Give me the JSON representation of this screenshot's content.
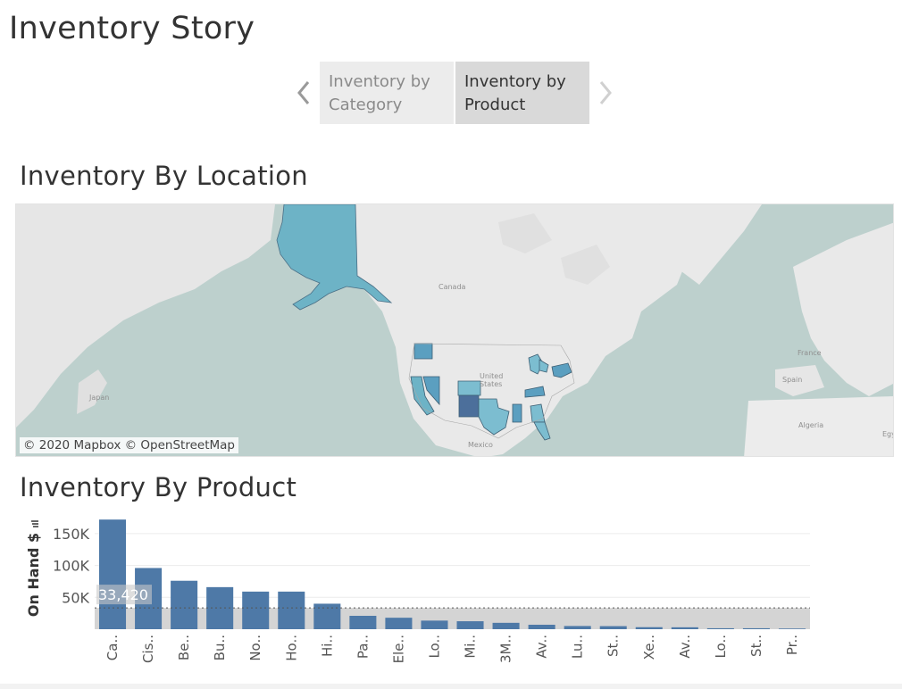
{
  "story": {
    "title": "Inventory Story",
    "points": [
      {
        "label": "Inventory by\nCategory",
        "selected": false
      },
      {
        "label": "Inventory by\nProduct",
        "selected": true
      }
    ],
    "prev_icon": "chevron-left-icon",
    "next_icon": "chevron-right-icon"
  },
  "location": {
    "title": "Inventory By Location",
    "attribution": "© 2020 Mapbox © OpenStreetMap",
    "labels": {
      "canada": "Canada",
      "united_states": "United\nStates",
      "mexico": "Mexico",
      "japan": "Japan",
      "france": "France",
      "spain": "Spain",
      "algeria": "Algeria",
      "egypt": "Egy"
    },
    "colors": {
      "water": "#bdd0cd",
      "land": "#e9e9e9",
      "state_light": "#7cbdd0",
      "state_mid": "#5b9fc0",
      "state_dark": "#4c6f9b"
    }
  },
  "product": {
    "title": "Inventory By Product",
    "reference_label": "33,420",
    "bar_color": "#4e79a7",
    "band_color": "#d4d4d4"
  },
  "chart_data": {
    "type": "bar",
    "categories": [
      "Ca..",
      "Cis..",
      "Be..",
      "Bu..",
      "No..",
      "Ho..",
      "Hi..",
      "Pa..",
      "Ele..",
      "Lo..",
      "Mi..",
      "3M..",
      "Av..",
      "Lu..",
      "St..",
      "Xe..",
      "Av..",
      "Lo..",
      "St..",
      "Pr.."
    ],
    "values": [
      172000,
      96000,
      76000,
      66000,
      59000,
      59000,
      40000,
      21000,
      18000,
      13500,
      12500,
      10000,
      7000,
      5000,
      4800,
      3200,
      3000,
      1500,
      1500,
      1000
    ],
    "ylabel": "On Hand $",
    "yticks": [
      "50K",
      "100K",
      "150K"
    ],
    "ylim": [
      0,
      175000
    ],
    "reference_line": 33420,
    "grid": true
  }
}
